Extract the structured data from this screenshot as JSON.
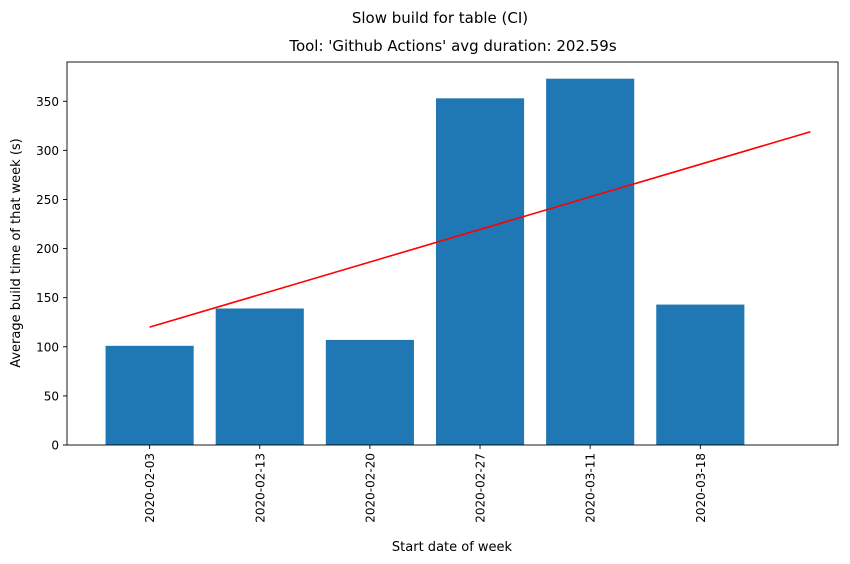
{
  "chart_data": {
    "type": "bar",
    "suptitle": "Slow build for table (CI)",
    "title": "Tool: 'Github Actions' avg duration: 202.59s",
    "xlabel": "Start date of week",
    "ylabel": "Average build time of that week (s)",
    "categories": [
      "2020-02-03",
      "2020-02-13",
      "2020-02-20",
      "2020-02-27",
      "2020-03-11",
      "2020-03-18"
    ],
    "values": [
      101,
      139,
      107,
      353,
      373,
      143
    ],
    "ylim": [
      0,
      390
    ],
    "yticks": [
      0,
      50,
      100,
      150,
      200,
      250,
      300,
      350
    ],
    "bar_color": "#1f77b4",
    "trend_line": {
      "color": "#ff0000",
      "x_index": [
        0,
        6
      ],
      "y": [
        120,
        319
      ]
    },
    "grid": false,
    "legend": "none"
  }
}
